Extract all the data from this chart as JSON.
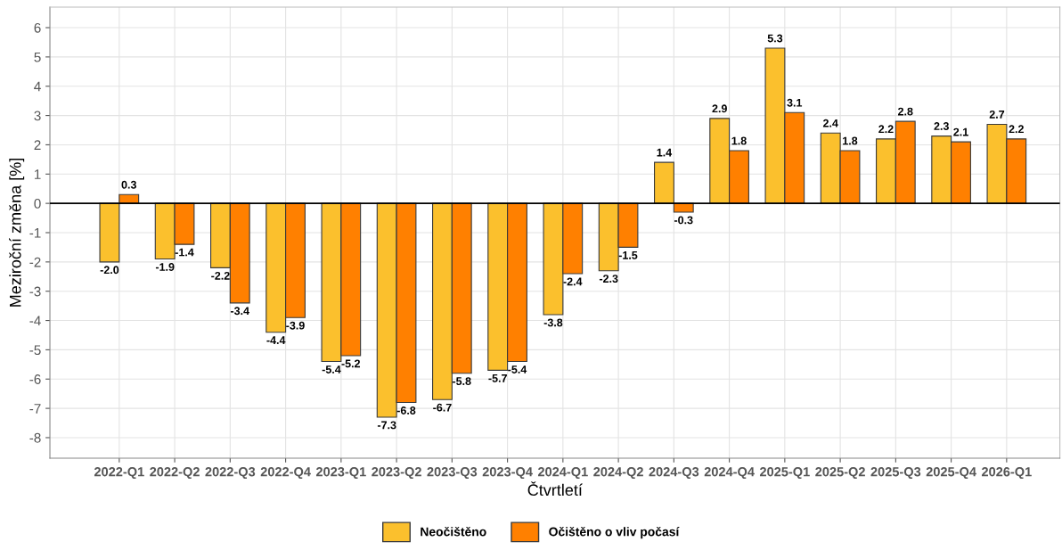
{
  "chart_data": {
    "type": "bar",
    "xlabel": "Čtvrtletí",
    "ylabel": "Meziroční změna [%]",
    "categories": [
      "2022-Q1",
      "2022-Q2",
      "2022-Q3",
      "2022-Q4",
      "2023-Q1",
      "2023-Q2",
      "2023-Q3",
      "2023-Q4",
      "2024-Q1",
      "2024-Q2",
      "2024-Q3",
      "2024-Q4",
      "2025-Q1",
      "2025-Q2",
      "2025-Q3",
      "2025-Q4",
      "2026-Q1"
    ],
    "series": [
      {
        "name": "Neočištěno",
        "color": "#fbc02d",
        "values": [
          -2.0,
          -1.9,
          -2.2,
          -4.4,
          -5.4,
          -7.3,
          -6.7,
          -5.7,
          -3.8,
          -2.3,
          1.4,
          2.9,
          5.3,
          2.4,
          2.2,
          2.3,
          2.7
        ]
      },
      {
        "name": "Očištěno o vliv počasí",
        "color": "#ff8000",
        "values": [
          0.3,
          -1.4,
          -3.4,
          -3.9,
          -5.2,
          -6.8,
          -5.8,
          -5.4,
          -2.4,
          -1.5,
          -0.3,
          1.8,
          3.1,
          1.8,
          2.8,
          2.1,
          2.2
        ]
      }
    ],
    "value_labels": [
      [
        "-2.0",
        "-1.9",
        "-2.2",
        "-4.4",
        "-5.4",
        "-7.3",
        "-6.7",
        "-5.7",
        "-3.8",
        "-2.3",
        "1.4",
        "2.9",
        "5.3",
        "2.4",
        "2.2",
        "2.3",
        "2.7"
      ],
      [
        "0.3",
        "-1.4",
        "-3.4",
        "-3.9",
        "-5.2",
        "-6.8",
        "-5.8",
        "-5.4",
        "-2.4",
        "-1.5",
        "-0.3",
        "1.8",
        "3.1",
        "1.8",
        "2.8",
        "2.1",
        "2.2"
      ]
    ],
    "ylim": [
      -8.7,
      6.7
    ],
    "yticks": [
      -8,
      -7,
      -6,
      -5,
      -4,
      -3,
      -2,
      -1,
      0,
      1,
      2,
      3,
      4,
      5,
      6
    ],
    "ref_lines": [
      {
        "axis": "y",
        "value": 0,
        "color": "#000000"
      }
    ],
    "grid": true,
    "legend": "bottom"
  }
}
